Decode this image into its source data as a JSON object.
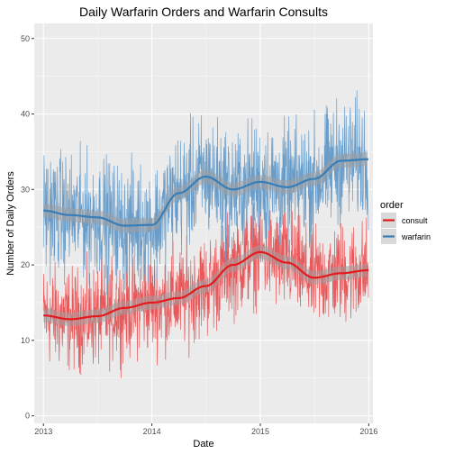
{
  "chart_data": {
    "type": "line",
    "title": "Daily Warfarin Orders and Warfarin Consults",
    "xlabel": "Date",
    "ylabel": "Number of Daily Orders",
    "xlim": [
      "2012-12-01",
      "2016-01-15"
    ],
    "ylim": [
      -1,
      52
    ],
    "x_ticks": [
      {
        "label": "2013",
        "value": "2013-01-01"
      },
      {
        "label": "2014",
        "value": "2014-01-01"
      },
      {
        "label": "2015",
        "value": "2015-01-01"
      },
      {
        "label": "2016",
        "value": "2016-01-01"
      }
    ],
    "y_ticks": [
      0,
      10,
      20,
      30,
      40,
      50
    ],
    "grid": true,
    "background": "#EBEBEB",
    "legend": {
      "title": "order",
      "position": "right"
    },
    "series": [
      {
        "name": "consult",
        "color": "#E41A1C",
        "raw_color": "#E8595B",
        "raw_range": [
          "2013-01-01",
          "2015-12-31"
        ],
        "raw_noise": 5,
        "smooth": [
          [
            "2013-01-01",
            13.3
          ],
          [
            "2013-04-01",
            12.8
          ],
          [
            "2013-07-01",
            13.2
          ],
          [
            "2013-10-01",
            14.3
          ],
          [
            "2014-01-01",
            15.0
          ],
          [
            "2014-04-01",
            15.6
          ],
          [
            "2014-07-01",
            17.2
          ],
          [
            "2014-10-01",
            20.0
          ],
          [
            "2015-01-01",
            21.7
          ],
          [
            "2015-04-01",
            20.3
          ],
          [
            "2015-07-01",
            18.3
          ],
          [
            "2015-10-01",
            18.9
          ],
          [
            "2015-12-31",
            19.3
          ]
        ]
      },
      {
        "name": "warfarin",
        "color": "#377EB8",
        "raw_color": "#6A9CC8",
        "raw_range": [
          "2013-01-01",
          "2015-12-31"
        ],
        "raw_noise": 6,
        "smooth": [
          [
            "2013-01-01",
            27.2
          ],
          [
            "2013-04-01",
            26.6
          ],
          [
            "2013-07-01",
            26.3
          ],
          [
            "2013-10-01",
            25.2
          ],
          [
            "2014-01-01",
            25.3
          ],
          [
            "2014-04-01",
            29.5
          ],
          [
            "2014-07-01",
            31.7
          ],
          [
            "2014-10-01",
            30.0
          ],
          [
            "2015-01-01",
            31.0
          ],
          [
            "2015-04-01",
            30.3
          ],
          [
            "2015-07-01",
            31.4
          ],
          [
            "2015-10-01",
            33.8
          ],
          [
            "2015-12-31",
            34.0
          ]
        ]
      }
    ]
  }
}
